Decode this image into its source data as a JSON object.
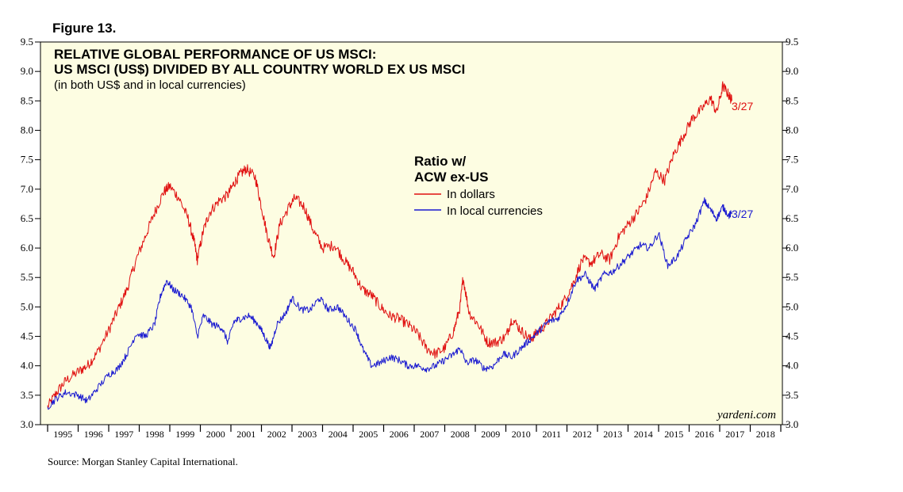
{
  "figure_label": "Figure 13.",
  "source": "Source: Morgan Stanley Capital International.",
  "watermark": "yardeni.com",
  "colors": {
    "panel": "#fdfde2",
    "dollars": "#e01010",
    "local": "#1a1ad0",
    "axis": "#000000"
  },
  "chart_data": {
    "type": "line",
    "title": "RELATIVE GLOBAL PERFORMANCE OF US MSCI:",
    "subtitle": "US MSCI (US$) DIVIDED BY ALL COUNTRY WORLD EX US MSCI",
    "note": "(in both US$ and in local currencies)",
    "xlabel": "",
    "ylabel": "",
    "xlim": [
      1995,
      2019
    ],
    "ylim": [
      3.0,
      9.5
    ],
    "y_ticks": [
      "3.0",
      "3.5",
      "4.0",
      "4.5",
      "5.0",
      "5.5",
      "6.0",
      "6.5",
      "7.0",
      "7.5",
      "8.0",
      "8.5",
      "9.0",
      "9.5"
    ],
    "x_tick_labels": [
      "1995",
      "1996",
      "1997",
      "1998",
      "1999",
      "2000",
      "2001",
      "2002",
      "2003",
      "2004",
      "2005",
      "2006",
      "2007",
      "2008",
      "2009",
      "2010",
      "2011",
      "2012",
      "2013",
      "2014",
      "2015",
      "2016",
      "2017",
      "2018"
    ],
    "legend": {
      "title_line1": "Ratio w/",
      "title_line2": "ACW ex-US",
      "placement": "upper-center"
    },
    "series": [
      {
        "name": "In dollars",
        "end_label": "3/27",
        "points": [
          [
            1995.0,
            3.3
          ],
          [
            1995.3,
            3.55
          ],
          [
            1995.6,
            3.75
          ],
          [
            1996.0,
            3.9
          ],
          [
            1996.3,
            4.0
          ],
          [
            1996.6,
            4.2
          ],
          [
            1997.0,
            4.6
          ],
          [
            1997.3,
            4.95
          ],
          [
            1997.6,
            5.3
          ],
          [
            1997.9,
            5.8
          ],
          [
            1998.2,
            6.2
          ],
          [
            1998.5,
            6.6
          ],
          [
            1998.8,
            6.95
          ],
          [
            1999.0,
            7.05
          ],
          [
            1999.3,
            6.85
          ],
          [
            1999.6,
            6.5
          ],
          [
            1999.8,
            6.1
          ],
          [
            1999.9,
            5.8
          ],
          [
            2000.1,
            6.3
          ],
          [
            2000.3,
            6.6
          ],
          [
            2000.6,
            6.8
          ],
          [
            2000.9,
            6.9
          ],
          [
            2001.1,
            7.1
          ],
          [
            2001.3,
            7.25
          ],
          [
            2001.5,
            7.35
          ],
          [
            2001.8,
            7.2
          ],
          [
            2002.0,
            6.7
          ],
          [
            2002.2,
            6.2
          ],
          [
            2002.4,
            5.85
          ],
          [
            2002.6,
            6.4
          ],
          [
            2002.9,
            6.7
          ],
          [
            2003.1,
            6.85
          ],
          [
            2003.4,
            6.7
          ],
          [
            2003.7,
            6.3
          ],
          [
            2004.0,
            6.0
          ],
          [
            2004.4,
            6.05
          ],
          [
            2004.7,
            5.8
          ],
          [
            2005.0,
            5.6
          ],
          [
            2005.3,
            5.3
          ],
          [
            2005.6,
            5.2
          ],
          [
            2005.9,
            5.0
          ],
          [
            2006.2,
            4.85
          ],
          [
            2006.5,
            4.8
          ],
          [
            2006.8,
            4.7
          ],
          [
            2007.1,
            4.55
          ],
          [
            2007.4,
            4.3
          ],
          [
            2007.7,
            4.2
          ],
          [
            2008.0,
            4.3
          ],
          [
            2008.3,
            4.6
          ],
          [
            2008.5,
            5.0
          ],
          [
            2008.6,
            5.5
          ],
          [
            2008.8,
            4.9
          ],
          [
            2009.1,
            4.7
          ],
          [
            2009.4,
            4.4
          ],
          [
            2009.7,
            4.4
          ],
          [
            2010.0,
            4.5
          ],
          [
            2010.2,
            4.8
          ],
          [
            2010.5,
            4.6
          ],
          [
            2010.8,
            4.45
          ],
          [
            2011.0,
            4.55
          ],
          [
            2011.3,
            4.7
          ],
          [
            2011.6,
            4.9
          ],
          [
            2011.9,
            5.1
          ],
          [
            2012.2,
            5.4
          ],
          [
            2012.5,
            5.8
          ],
          [
            2012.8,
            5.75
          ],
          [
            2013.1,
            5.9
          ],
          [
            2013.4,
            5.8
          ],
          [
            2013.7,
            6.2
          ],
          [
            2014.0,
            6.4
          ],
          [
            2014.3,
            6.6
          ],
          [
            2014.6,
            6.85
          ],
          [
            2014.9,
            7.3
          ],
          [
            2015.2,
            7.15
          ],
          [
            2015.5,
            7.6
          ],
          [
            2015.8,
            7.9
          ],
          [
            2016.1,
            8.2
          ],
          [
            2016.4,
            8.35
          ],
          [
            2016.7,
            8.55
          ],
          [
            2016.9,
            8.3
          ],
          [
            2017.1,
            8.75
          ],
          [
            2017.3,
            8.6
          ],
          [
            2017.4,
            8.5
          ]
        ]
      },
      {
        "name": "In local currencies",
        "end_label": "3/27",
        "points": [
          [
            1995.0,
            3.3
          ],
          [
            1995.3,
            3.45
          ],
          [
            1995.6,
            3.55
          ],
          [
            1996.0,
            3.5
          ],
          [
            1996.3,
            3.4
          ],
          [
            1996.6,
            3.6
          ],
          [
            1997.0,
            3.85
          ],
          [
            1997.3,
            3.95
          ],
          [
            1997.6,
            4.2
          ],
          [
            1997.9,
            4.55
          ],
          [
            1998.2,
            4.5
          ],
          [
            1998.5,
            4.7
          ],
          [
            1998.7,
            5.2
          ],
          [
            1998.9,
            5.45
          ],
          [
            1999.1,
            5.3
          ],
          [
            1999.4,
            5.2
          ],
          [
            1999.7,
            5.0
          ],
          [
            1999.9,
            4.5
          ],
          [
            2000.1,
            4.85
          ],
          [
            2000.4,
            4.7
          ],
          [
            2000.7,
            4.65
          ],
          [
            2000.9,
            4.4
          ],
          [
            2001.1,
            4.75
          ],
          [
            2001.3,
            4.8
          ],
          [
            2001.6,
            4.85
          ],
          [
            2001.9,
            4.7
          ],
          [
            2002.1,
            4.5
          ],
          [
            2002.3,
            4.3
          ],
          [
            2002.5,
            4.7
          ],
          [
            2002.8,
            4.9
          ],
          [
            2003.0,
            5.15
          ],
          [
            2003.3,
            4.95
          ],
          [
            2003.6,
            4.95
          ],
          [
            2003.9,
            5.15
          ],
          [
            2004.2,
            4.95
          ],
          [
            2004.5,
            5.0
          ],
          [
            2004.8,
            4.8
          ],
          [
            2005.1,
            4.6
          ],
          [
            2005.3,
            4.3
          ],
          [
            2005.6,
            4.0
          ],
          [
            2005.9,
            4.05
          ],
          [
            2006.2,
            4.15
          ],
          [
            2006.5,
            4.1
          ],
          [
            2006.8,
            4.0
          ],
          [
            2007.1,
            4.0
          ],
          [
            2007.4,
            3.95
          ],
          [
            2007.7,
            4.0
          ],
          [
            2008.0,
            4.1
          ],
          [
            2008.3,
            4.2
          ],
          [
            2008.5,
            4.3
          ],
          [
            2008.7,
            4.05
          ],
          [
            2009.0,
            4.1
          ],
          [
            2009.3,
            3.95
          ],
          [
            2009.6,
            4.0
          ],
          [
            2009.9,
            4.2
          ],
          [
            2010.2,
            4.15
          ],
          [
            2010.5,
            4.3
          ],
          [
            2010.8,
            4.45
          ],
          [
            2011.1,
            4.6
          ],
          [
            2011.4,
            4.75
          ],
          [
            2011.7,
            4.8
          ],
          [
            2012.0,
            5.05
          ],
          [
            2012.3,
            5.45
          ],
          [
            2012.6,
            5.55
          ],
          [
            2012.9,
            5.3
          ],
          [
            2013.2,
            5.55
          ],
          [
            2013.5,
            5.6
          ],
          [
            2013.8,
            5.75
          ],
          [
            2014.1,
            5.9
          ],
          [
            2014.4,
            6.05
          ],
          [
            2014.7,
            6.0
          ],
          [
            2015.0,
            6.25
          ],
          [
            2015.3,
            5.7
          ],
          [
            2015.6,
            5.85
          ],
          [
            2015.9,
            6.15
          ],
          [
            2016.2,
            6.4
          ],
          [
            2016.5,
            6.8
          ],
          [
            2016.7,
            6.65
          ],
          [
            2016.9,
            6.5
          ],
          [
            2017.1,
            6.7
          ],
          [
            2017.3,
            6.55
          ],
          [
            2017.4,
            6.6
          ]
        ]
      }
    ]
  }
}
